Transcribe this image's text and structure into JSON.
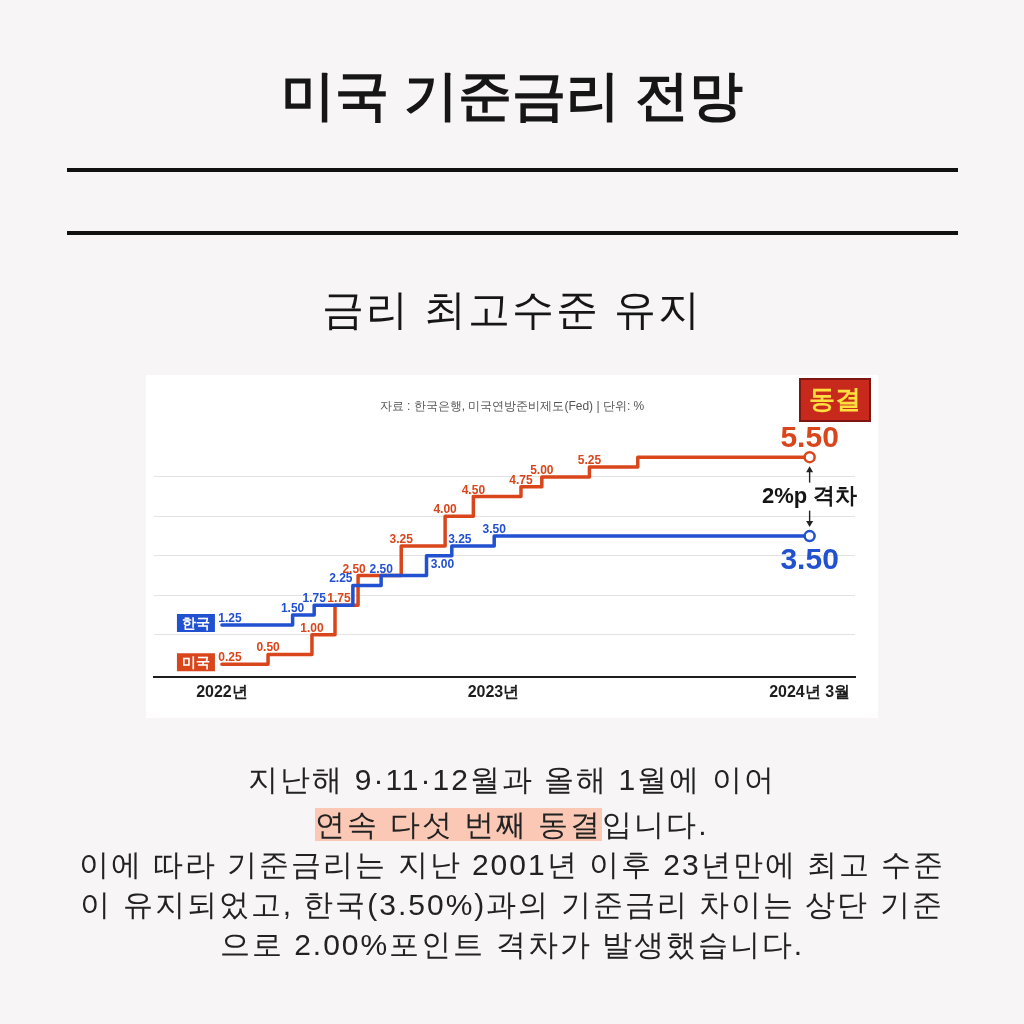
{
  "chart_data": {
    "type": "step",
    "title": "미국 기준금리 전망",
    "subtitle": "금리 최고수준 유지",
    "series": [
      {
        "name": "미국",
        "color": "#d9461c",
        "marker": "none",
        "x": [
          "2022-01-01",
          "2022-03-04",
          "2022-05-02",
          "2022-06-02",
          "2022-07-03",
          "2022-08-30",
          "2022-10-28",
          "2022-12-05",
          "2023-02-07",
          "2023-03-07",
          "2023-05-10",
          "2023-07-14",
          "2024-03-01"
        ],
        "values": [
          0.25,
          0.5,
          1,
          1.75,
          2.5,
          3.25,
          4,
          4.5,
          4.75,
          5,
          5.25,
          5.5,
          5.5
        ],
        "value_labels": [
          "0.25",
          "0.50",
          "1.00",
          "1.75",
          "2.50",
          "3.25",
          "4.00",
          "4.50",
          "4.75",
          "5.00",
          "5.25",
          null,
          null
        ]
      },
      {
        "name": "한국",
        "color": "#2150d0",
        "marker": "none",
        "x": [
          "2022-01-01",
          "2022-04-06",
          "2022-05-05",
          "2022-06-26",
          "2022-08-03",
          "2022-10-03",
          "2022-11-06",
          "2023-01-02",
          "2024-03-01"
        ],
        "values": [
          1.25,
          1.5,
          1.75,
          2.25,
          2.5,
          3,
          3.25,
          3.5,
          3.5
        ],
        "value_labels": [
          "1.25",
          "1.50",
          "1.75",
          "2.25",
          "2.50",
          "3.00",
          "3.25",
          "3.50",
          null
        ]
      },
      {
        "type": "scatter",
        "color": "#d9461c",
        "marker": "circle",
        "x": [
          "2024-03-01"
        ],
        "values": [
          5.5
        ],
        "value_labels": [
          "5.50"
        ]
      },
      {
        "type": "scatter",
        "color": "#2150d0",
        "marker": "circle",
        "x": [
          "2024-03-01"
        ],
        "values": [
          3.5
        ],
        "value_labels": [
          "3.50"
        ]
      }
    ],
    "xlim": [
      "2021-10",
      "2024-05"
    ],
    "xticks": [
      {
        "value": "2022-01",
        "label": "2022년"
      },
      {
        "value": "2023-01",
        "label": "2023년"
      },
      {
        "value": "2024-03",
        "label": "2024년 3월"
      }
    ],
    "yticks": [
      1,
      2,
      3,
      4,
      5
    ],
    "tick_labels": "x",
    "grid": "y",
    "line_style": "solid",
    "annotations": [
      "자료 : 한국은행, 미국연방준비제도(Fed) | 단위: %",
      "동결",
      "2%p 격차",
      "지난해 9·11·12월과 올해 1월에 이어",
      "연속 다섯 번째 동결",
      "입니다.",
      "이에 따라 기준금리는 지난 2001년 이후 23년만에 최고 수준이 유지되었고, 한국(3.50%)과의 기준금리 차이는 상단 기준으로 2.00%포인트 격차가 발생했습니다."
    ]
  }
}
